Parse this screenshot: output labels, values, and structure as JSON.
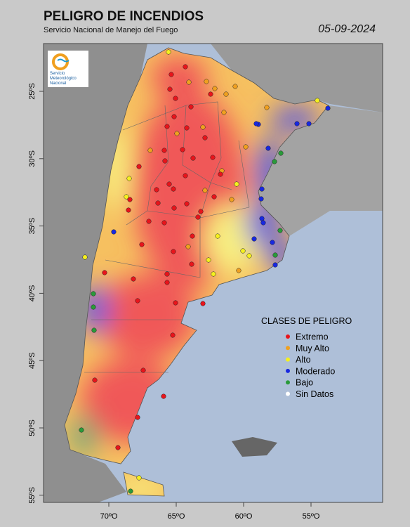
{
  "header": {
    "title": "PELIGRO DE INCENDIOS",
    "subtitle": "Servicio Nacional de Manejo del Fuego",
    "date": "05-09-2024"
  },
  "logo": {
    "lines": [
      "Servicio",
      "Meteorológico",
      "Nacional"
    ]
  },
  "lat_labels": [
    "25ºS",
    "30ºS",
    "35ºS",
    "40ºS",
    "45ºS",
    "50ºS",
    "55ºS"
  ],
  "lon_labels": [
    "70ºO",
    "65ºO",
    "60ºO",
    "55ºO"
  ],
  "legend": {
    "title": "CLASES DE PELIGRO",
    "items": [
      {
        "label": "Extremo",
        "color": "#e8141b"
      },
      {
        "label": "Muy Alto",
        "color": "#f0a020"
      },
      {
        "label": "Alto",
        "color": "#f5f020"
      },
      {
        "label": "Moderado",
        "color": "#1828e0"
      },
      {
        "label": "Bajo",
        "color": "#2a9a3a"
      },
      {
        "label": "Sin Datos",
        "color": "#ffffff"
      }
    ]
  }
}
